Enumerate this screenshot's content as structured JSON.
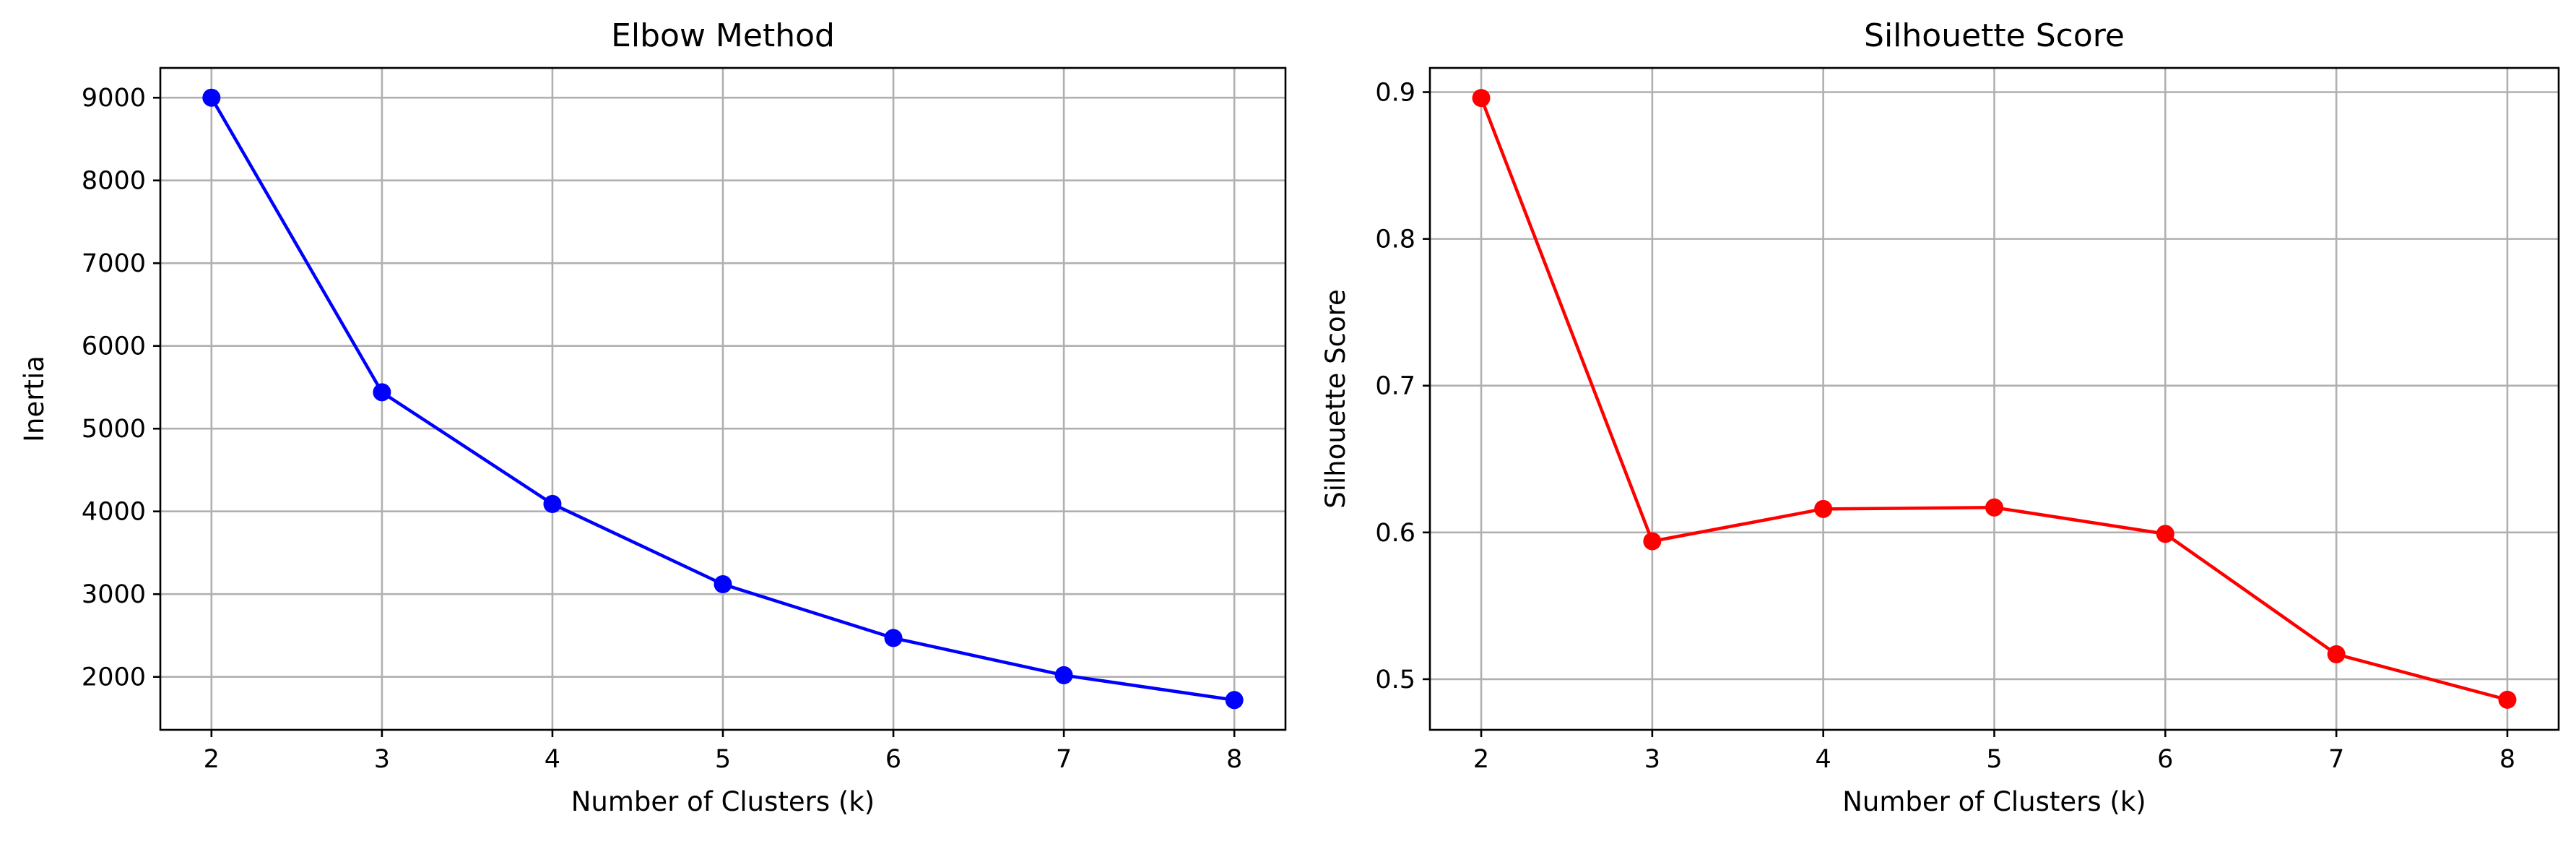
{
  "chart_data": [
    {
      "type": "line",
      "title": "Elbow Method",
      "xlabel": "Number of Clusters (k)",
      "ylabel": "Inertia",
      "x": [
        2,
        3,
        4,
        5,
        6,
        7,
        8
      ],
      "series": [
        {
          "values": [
            9000,
            5440,
            4090,
            3120,
            2470,
            2020,
            1720
          ],
          "color": "#0000ff",
          "marker": "circle"
        }
      ],
      "xlim": [
        1.7,
        8.3
      ],
      "ylim": [
        1360,
        9360
      ],
      "xticks": [
        2,
        3,
        4,
        5,
        6,
        7,
        8
      ],
      "yticks": [
        2000,
        3000,
        4000,
        5000,
        6000,
        7000,
        8000,
        9000
      ],
      "ytick_labels": [
        "2000",
        "3000",
        "4000",
        "5000",
        "6000",
        "7000",
        "8000",
        "9000"
      ],
      "grid": true
    },
    {
      "type": "line",
      "title": "Silhouette Score",
      "xlabel": "Number of Clusters (k)",
      "ylabel": "Silhouette Score",
      "x": [
        2,
        3,
        4,
        5,
        6,
        7,
        8
      ],
      "series": [
        {
          "values": [
            0.896,
            0.594,
            0.616,
            0.617,
            0.599,
            0.517,
            0.486
          ],
          "color": "#ff0000",
          "marker": "circle"
        }
      ],
      "xlim": [
        1.7,
        8.3
      ],
      "ylim": [
        0.4655,
        0.9165
      ],
      "xticks": [
        2,
        3,
        4,
        5,
        6,
        7,
        8
      ],
      "yticks": [
        0.5,
        0.6,
        0.7,
        0.8,
        0.9
      ],
      "ytick_labels": [
        "0.5",
        "0.6",
        "0.7",
        "0.8",
        "0.9"
      ],
      "grid": true
    }
  ]
}
